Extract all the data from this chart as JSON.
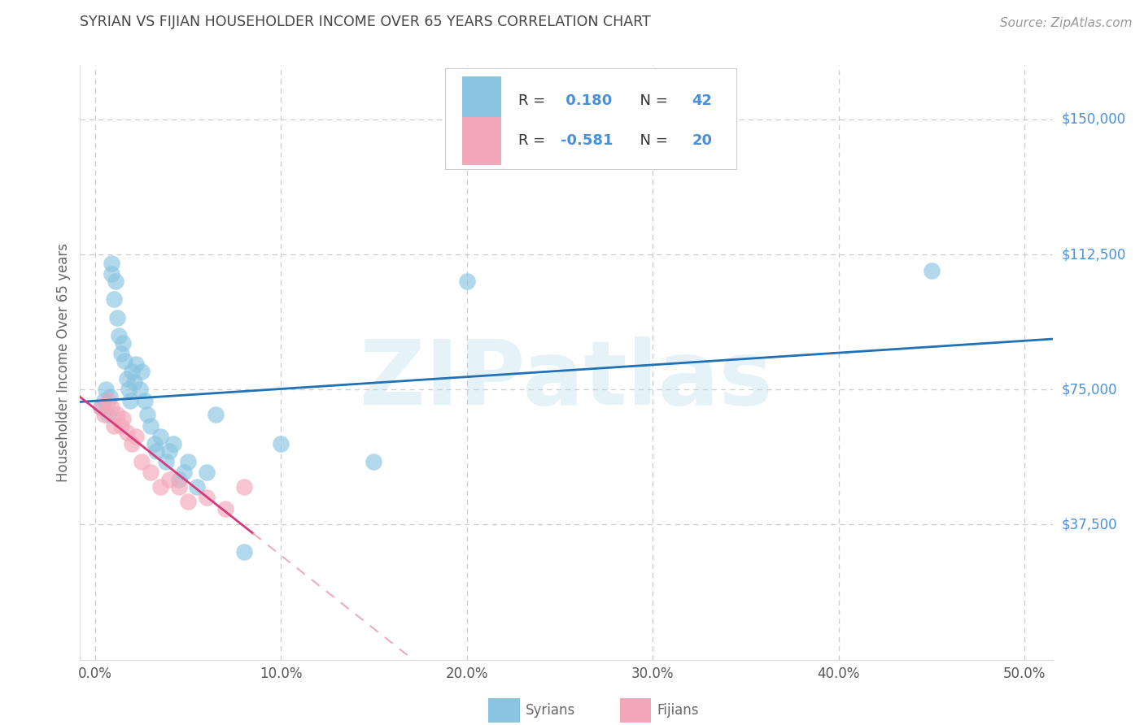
{
  "title": "SYRIAN VS FIJIAN HOUSEHOLDER INCOME OVER 65 YEARS CORRELATION CHART",
  "source": "Source: ZipAtlas.com",
  "ylabel": "Householder Income Over 65 years",
  "xlabel_ticks": [
    "0.0%",
    "10.0%",
    "20.0%",
    "30.0%",
    "40.0%",
    "50.0%"
  ],
  "xlabel_vals": [
    0.0,
    0.1,
    0.2,
    0.3,
    0.4,
    0.5
  ],
  "ylabel_ticks": [
    "$37,500",
    "$75,000",
    "$112,500",
    "$150,000"
  ],
  "ylabel_vals": [
    37500,
    75000,
    112500,
    150000
  ],
  "ylim": [
    0,
    165000
  ],
  "xlim": [
    -0.008,
    0.515
  ],
  "watermark": "ZIPatlas",
  "syrian_color": "#89c4e1",
  "fijian_color": "#f4a7b9",
  "syrian_edge_color": "#5b9dc9",
  "fijian_edge_color": "#e07090",
  "syrian_trend_color": "#2171b5",
  "fijian_trend_solid_color": "#d63a7a",
  "fijian_trend_dash_color": "#f0aac0",
  "background_color": "#ffffff",
  "grid_color": "#cccccc",
  "title_color": "#444444",
  "axis_label_color": "#666666",
  "tick_label_color_y": "#4a90d9",
  "tick_label_color_x": "#555555",
  "source_color": "#999999",
  "legend_text_color": "#333333",
  "legend_num_color": "#4a90d9",
  "syrian_x": [
    0.003,
    0.005,
    0.006,
    0.007,
    0.008,
    0.009,
    0.009,
    0.01,
    0.011,
    0.012,
    0.013,
    0.014,
    0.015,
    0.016,
    0.017,
    0.018,
    0.019,
    0.02,
    0.021,
    0.022,
    0.024,
    0.025,
    0.027,
    0.028,
    0.03,
    0.032,
    0.033,
    0.035,
    0.038,
    0.04,
    0.042,
    0.045,
    0.048,
    0.05,
    0.055,
    0.06,
    0.065,
    0.08,
    0.1,
    0.15,
    0.2,
    0.45
  ],
  "syrian_y": [
    70000,
    72000,
    75000,
    68000,
    73000,
    110000,
    107000,
    100000,
    105000,
    95000,
    90000,
    85000,
    88000,
    83000,
    78000,
    75000,
    72000,
    80000,
    77000,
    82000,
    75000,
    80000,
    72000,
    68000,
    65000,
    60000,
    58000,
    62000,
    55000,
    58000,
    60000,
    50000,
    52000,
    55000,
    48000,
    52000,
    68000,
    30000,
    60000,
    55000,
    105000,
    108000
  ],
  "fijian_x": [
    0.003,
    0.005,
    0.007,
    0.009,
    0.01,
    0.012,
    0.014,
    0.015,
    0.017,
    0.02,
    0.022,
    0.025,
    0.03,
    0.035,
    0.04,
    0.045,
    0.05,
    0.06,
    0.07,
    0.08
  ],
  "fijian_y": [
    70000,
    68000,
    72000,
    70000,
    65000,
    68000,
    65000,
    67000,
    63000,
    60000,
    62000,
    55000,
    52000,
    48000,
    50000,
    48000,
    44000,
    45000,
    42000,
    48000
  ],
  "syrian_R": 0.18,
  "syrian_N": 42,
  "fijian_R": -0.581,
  "fijian_N": 20
}
